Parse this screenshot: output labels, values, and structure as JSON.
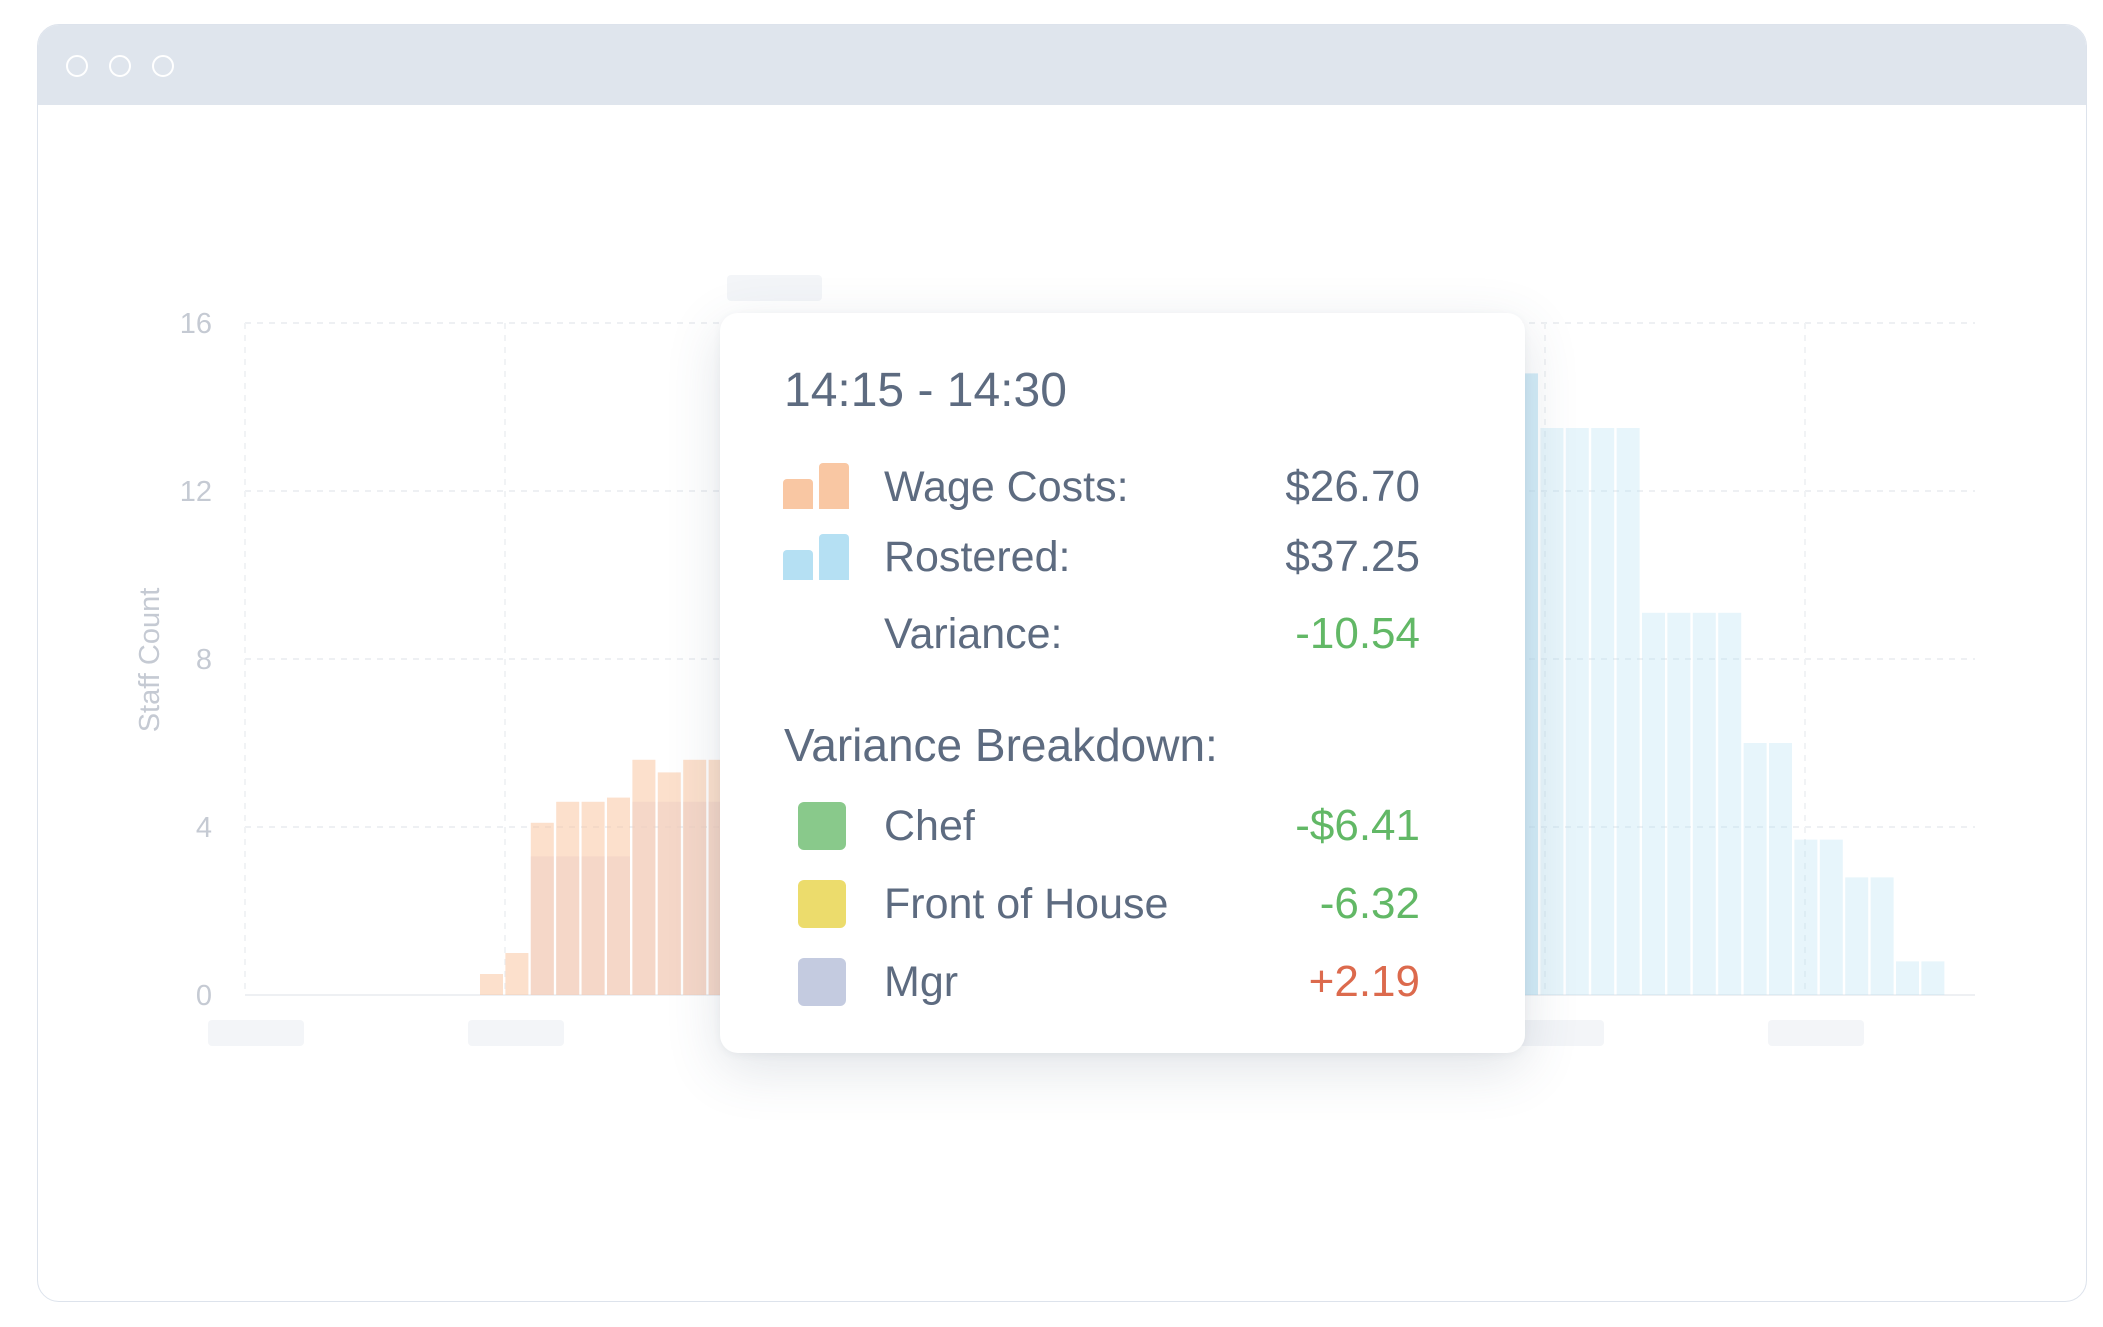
{
  "window": {
    "controls": [
      "close",
      "minimize",
      "maximize"
    ]
  },
  "chart_data": {
    "type": "bar",
    "ylabel": "Staff Count",
    "ylim": [
      0,
      16
    ],
    "yticks": [
      0,
      4,
      8,
      12,
      16
    ],
    "grid": true,
    "series": [
      {
        "name": "Wage Costs",
        "color": "#f9c7a3",
        "values": [
          0.5,
          1,
          4.1,
          4.6,
          4.6,
          4.7,
          5.6,
          5.3,
          5.6,
          5.6
        ]
      },
      {
        "name": "Rostered",
        "color": "#b5e0f3",
        "values": [
          14.8,
          13.5,
          13.5,
          13.5,
          13.5,
          9.1,
          9.1,
          9.1,
          9.1,
          6,
          6,
          3.7,
          3.7,
          2.8,
          2.8,
          0.8,
          0.8
        ]
      }
    ]
  },
  "tooltip": {
    "time_range": "14:15 - 14:30",
    "rows": [
      {
        "label": "Wage Costs:",
        "value": "$26.70",
        "value_color": "#5d6b80",
        "legend_icon": "orange-bars-icon"
      },
      {
        "label": "Rostered:",
        "value": "$37.25",
        "value_color": "#5d6b80",
        "legend_icon": "blue-bars-icon"
      },
      {
        "label": "Variance:",
        "value": "-10.54",
        "value_color": "#62b866"
      }
    ],
    "breakdown_title": "Variance Breakdown:",
    "breakdown": [
      {
        "label": "Chef",
        "value": "-$6.41",
        "value_color": "#62b866",
        "swatch": "#89c98b"
      },
      {
        "label": "Front of House",
        "value": "-6.32",
        "value_color": "#62b866",
        "swatch": "#ecdc6c"
      },
      {
        "label": "Mgr",
        "value": "+2.19",
        "value_color": "#dc6a4d",
        "swatch": "#c4cbe0"
      }
    ]
  }
}
